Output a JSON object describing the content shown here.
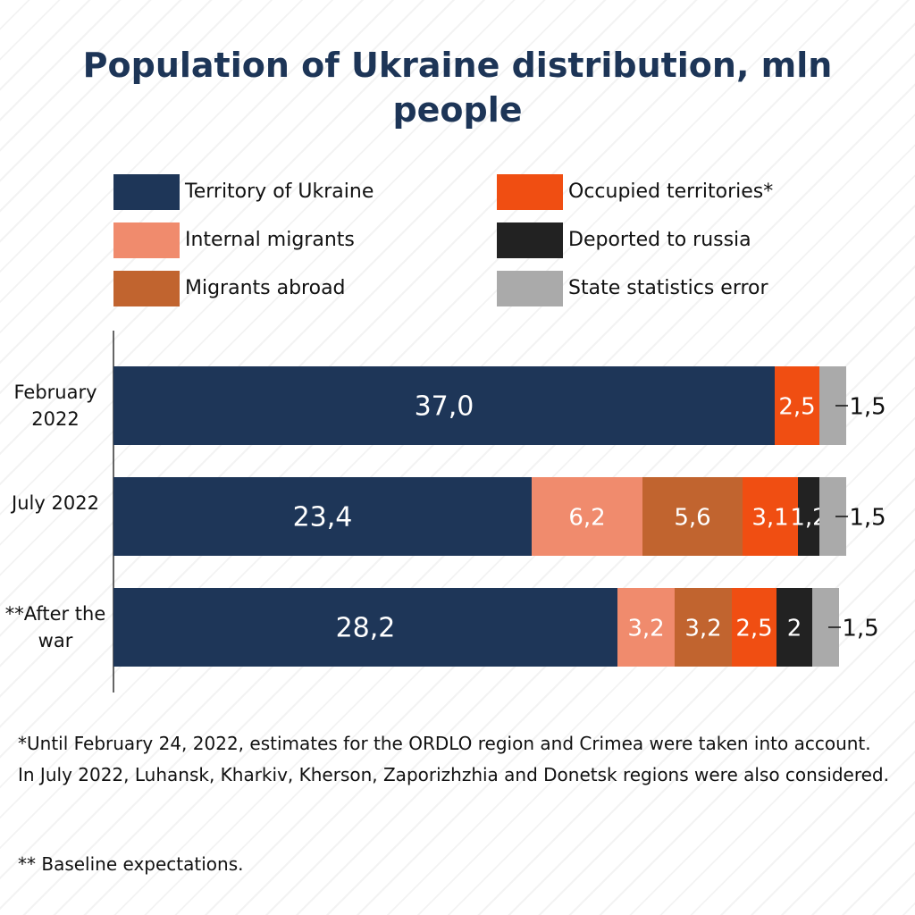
{
  "chart_data": {
    "type": "stacked-bar-horizontal",
    "title": "Population of Ukraine distribution, mln people",
    "categories": [
      "February 2022",
      "July 2022",
      "**After the war"
    ],
    "series": [
      {
        "name": "Territory of Ukraine",
        "color": "#1e3658",
        "values": [
          37.0,
          23.4,
          28.2
        ],
        "value_labels": [
          "37,0",
          "23,4",
          "28,2"
        ]
      },
      {
        "name": "Internal migrants",
        "color": "#f08b6d",
        "values": [
          null,
          6.2,
          3.2
        ],
        "value_labels": [
          null,
          "6,2",
          "3,2"
        ]
      },
      {
        "name": "Migrants abroad",
        "color": "#c1642f",
        "values": [
          null,
          5.6,
          3.2
        ],
        "value_labels": [
          null,
          "5,6",
          "3,2"
        ]
      },
      {
        "name": "Occupied territories*",
        "color": "#f04e12",
        "values": [
          2.5,
          3.1,
          2.5
        ],
        "value_labels": [
          "2,5",
          "3,1",
          "2,5"
        ]
      },
      {
        "name": "Deported to russia",
        "color": "#222222",
        "values": [
          null,
          1.2,
          2
        ],
        "value_labels": [
          null,
          "1,2",
          "2"
        ]
      },
      {
        "name": "State statistics error",
        "color": "#aaaaaa",
        "values": [
          1.5,
          1.5,
          1.5
        ],
        "value_labels": [
          "1,5",
          "1,5",
          "1,5"
        ]
      }
    ],
    "notes": [
      "*Until February 24, 2022, estimates for the ORDLO region and Crimea were taken into account. In July 2022, Luhansk, Kharkiv, Kherson, Zaporizhzhia and Donetsk regions were also considered.",
      "** Baseline expectations."
    ]
  }
}
